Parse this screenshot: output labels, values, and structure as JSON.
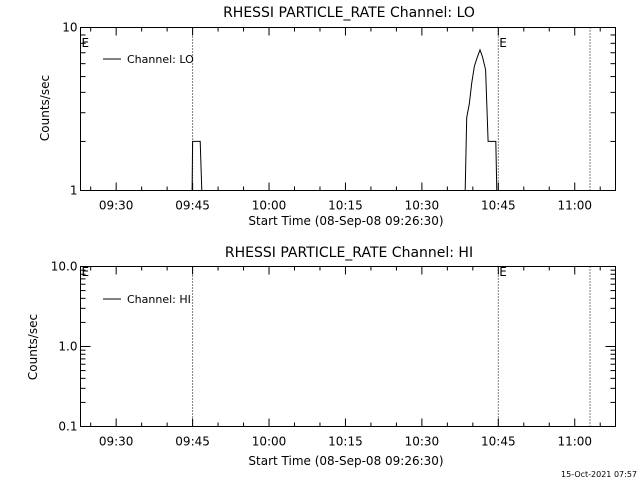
{
  "footer": {
    "timestamp": "15-Oct-2021 07:57"
  },
  "chart_data": [
    {
      "type": "line",
      "title": "RHESSI PARTICLE_RATE Channel: LO",
      "xlabel": "Start Time (08-Sep-08 09:26:30)",
      "ylabel": "Counts/sec",
      "yscale": "log",
      "xlim": [
        "09:23",
        "11:08"
      ],
      "ylim": [
        1,
        10
      ],
      "xticks": [
        "09:30",
        "09:45",
        "10:00",
        "10:15",
        "10:30",
        "10:45",
        "11:00"
      ],
      "yticks": [
        {
          "v": 1,
          "label": "1"
        },
        {
          "v": 10,
          "label": "10"
        }
      ],
      "legend": "upper-left",
      "markers": [
        {
          "t": "09:23",
          "label": "E"
        },
        {
          "t": "09:45",
          "label": ""
        },
        {
          "t": "10:45",
          "label": "E"
        },
        {
          "t": "11:03",
          "label": ""
        }
      ],
      "series": [
        {
          "name": "Channel: LO",
          "points": [
            [
              "09:23",
              1
            ],
            [
              "09:44.9",
              1
            ],
            [
              "09:45.0",
              2
            ],
            [
              "09:46.5",
              2
            ],
            [
              "09:46.8",
              1
            ],
            [
              "10:38.5",
              1
            ],
            [
              "10:38.8",
              2.8
            ],
            [
              "10:39.3",
              3.4
            ],
            [
              "10:39.8",
              4.6
            ],
            [
              "10:40.3",
              5.8
            ],
            [
              "10:40.9",
              6.6
            ],
            [
              "10:41.4",
              7.3
            ],
            [
              "10:41.9",
              6.6
            ],
            [
              "10:42.5",
              5.5
            ],
            [
              "10:43.0",
              2.0
            ],
            [
              "10:44.5",
              2.0
            ],
            [
              "10:44.7",
              1
            ],
            [
              "11:08",
              1
            ]
          ]
        }
      ]
    },
    {
      "type": "line",
      "title": "RHESSI PARTICLE_RATE Channel: HI",
      "xlabel": "Start Time (08-Sep-08 09:26:30)",
      "ylabel": "Counts/sec",
      "yscale": "log",
      "xlim": [
        "09:23",
        "11:08"
      ],
      "ylim": [
        0.1,
        10
      ],
      "xticks": [
        "09:30",
        "09:45",
        "10:00",
        "10:15",
        "10:30",
        "10:45",
        "11:00"
      ],
      "yticks": [
        {
          "v": 0.1,
          "label": "0.1"
        },
        {
          "v": 1,
          "label": "1.0"
        },
        {
          "v": 10,
          "label": "10.0"
        }
      ],
      "legend": "upper-left",
      "markers": [
        {
          "t": "09:23",
          "label": "E"
        },
        {
          "t": "09:45",
          "label": ""
        },
        {
          "t": "10:45",
          "label": "E"
        },
        {
          "t": "11:03",
          "label": ""
        }
      ],
      "series": [
        {
          "name": "Channel: HI",
          "points": []
        }
      ]
    }
  ]
}
